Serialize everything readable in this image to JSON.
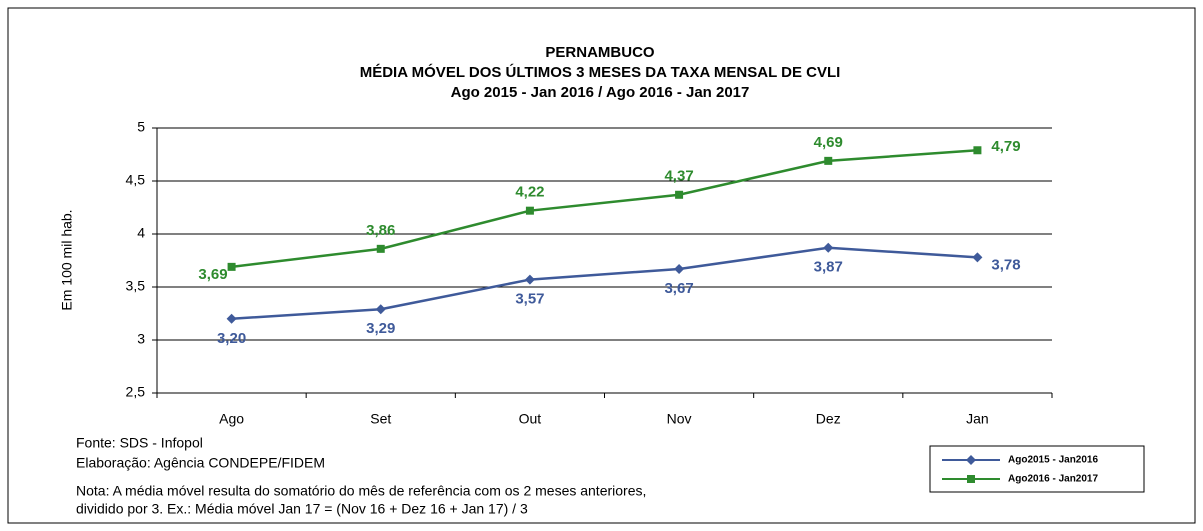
{
  "chart_data": {
    "type": "line",
    "title": [
      "PERNAMBUCO",
      "MÉDIA MÓVEL DOS ÚLTIMOS 3 MESES DA TAXA MENSAL DE CVLI",
      "Ago 2015 - Jan 2016 / Ago 2016 - Jan 2017"
    ],
    "y_label": "Em 100 mil hab.",
    "categories": [
      "Ago",
      "Set",
      "Out",
      "Nov",
      "Dez",
      "Jan"
    ],
    "series": [
      {
        "name": "Ago2015 - Jan2016",
        "color": "#3f5a9a",
        "marker": "diamond",
        "values": [
          3.2,
          3.29,
          3.57,
          3.67,
          3.87,
          3.78
        ],
        "value_labels": [
          "3,20",
          "3,29",
          "3,57",
          "3,67",
          "3,87",
          "3,78"
        ]
      },
      {
        "name": "Ago2016 - Jan2017",
        "color": "#2e8b2e",
        "marker": "square",
        "values": [
          3.69,
          3.86,
          4.22,
          4.37,
          4.69,
          4.79
        ],
        "value_labels": [
          "3,69",
          "3,86",
          "4,22",
          "4,37",
          "4,69",
          "4,79"
        ]
      }
    ],
    "ylim": [
      2.5,
      5
    ],
    "yticks": [
      {
        "value": 2.5,
        "label": "2,5"
      },
      3,
      {
        "value": 3.5,
        "label": "3,5"
      },
      4,
      {
        "value": 4.5,
        "label": "4,5"
      },
      5
    ],
    "grid": true,
    "legend": "bottom-right",
    "notes": [
      "Fonte: SDS - Infopol",
      "Elaboração: Agência CONDEPE/FIDEM",
      "Nota: A média móvel resulta do somatório do mês de referência com os 2 meses anteriores,",
      "dividido por 3. Ex.: Média móvel Jan 17 = (Nov 16 + Dez 16 + Jan 17) / 3"
    ]
  }
}
